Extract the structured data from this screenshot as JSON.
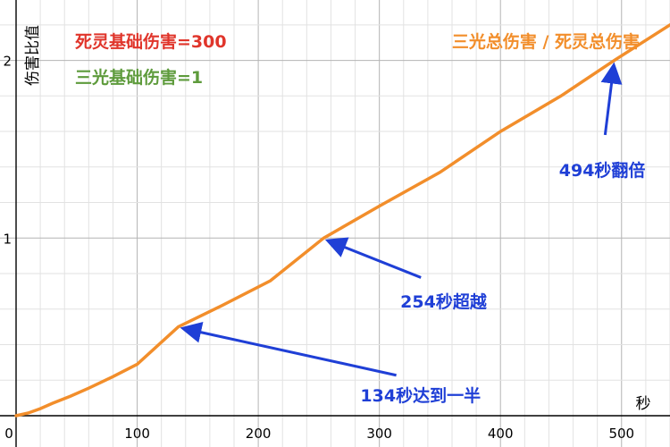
{
  "chart_data": {
    "type": "line",
    "legend": [
      {
        "text": "死灵基础伤害=300",
        "color": "#e0352b"
      },
      {
        "text": "三光基础伤害=1",
        "color": "#5e9b3c"
      }
    ],
    "series": [
      {
        "name": "三光总伤害 / 死灵总伤害",
        "color": "#f28e2b",
        "x": [
          0,
          10,
          20,
          30,
          45,
          60,
          80,
          100,
          134,
          170,
          210,
          254,
          300,
          350,
          400,
          450,
          494,
          540
        ],
        "y": [
          0,
          0.015,
          0.04,
          0.07,
          0.11,
          0.155,
          0.22,
          0.29,
          0.5,
          0.62,
          0.76,
          1.0,
          1.18,
          1.37,
          1.6,
          1.8,
          2.0,
          2.2
        ]
      }
    ],
    "xlabel": "秒",
    "ylabel": "伤害比值",
    "xlim": [
      0,
      540
    ],
    "ylim": [
      0,
      2.34
    ],
    "x_ticks": [
      0,
      100,
      200,
      300,
      400,
      500
    ],
    "x_tick_labels": [
      "0",
      "100",
      "200",
      "300",
      "400",
      "500"
    ],
    "y_ticks": [
      1,
      2
    ],
    "y_tick_labels": [
      "1",
      "2"
    ],
    "x_minor_step": 20,
    "y_minor_step": 0.2,
    "grid": true,
    "annotations": [
      {
        "text": "134秒达到一半",
        "x": 134,
        "y": 0.5,
        "label_x": 334,
        "label_y": 0.15
      },
      {
        "text": "254秒超越",
        "x": 254,
        "y": 1.0,
        "label_x": 353,
        "label_y": 0.68
      },
      {
        "text": "494秒翻倍",
        "x": 494,
        "y": 2.0,
        "label_x": 484,
        "label_y": 1.42
      }
    ]
  }
}
